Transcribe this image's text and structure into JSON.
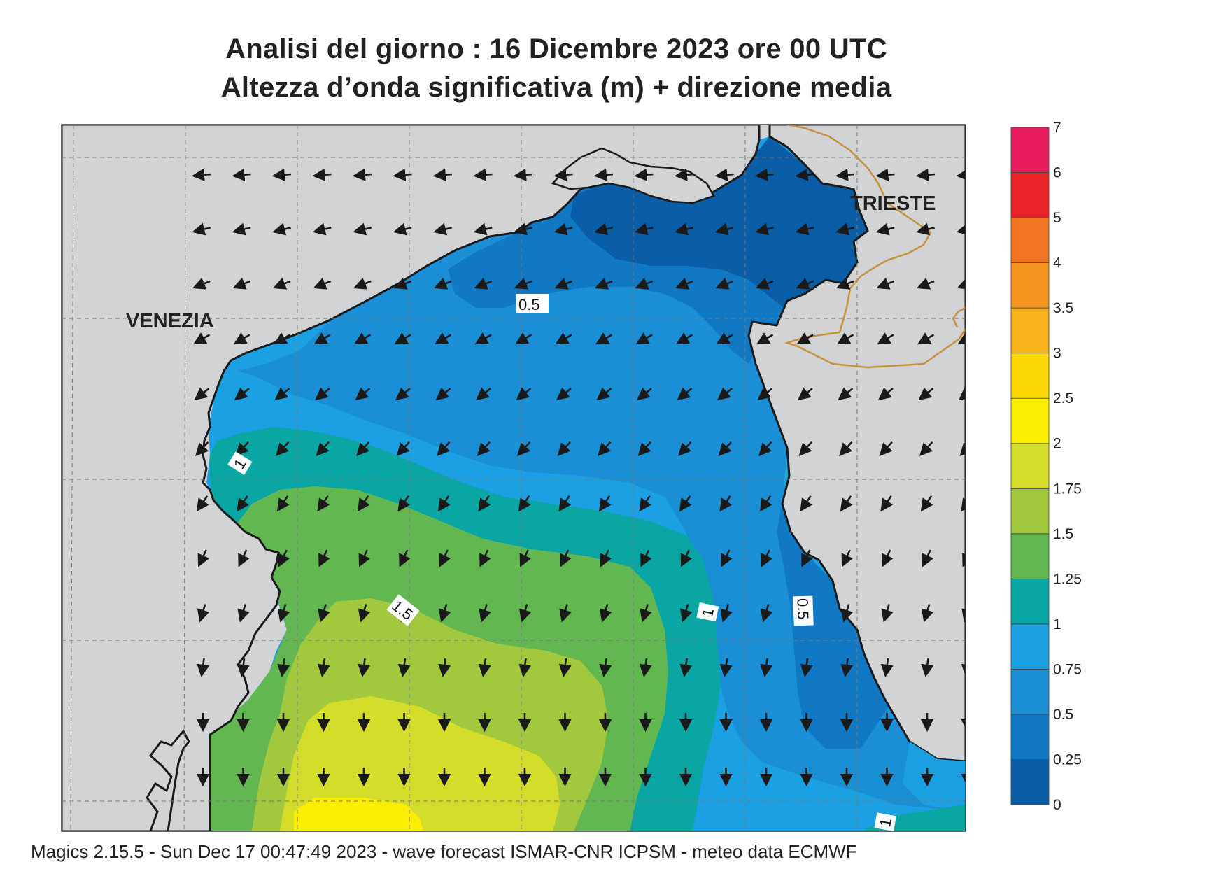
{
  "header": {
    "title_line1": "Analisi del giorno :  16 Dicembre  2023   ore 00 UTC",
    "title_line2": "Altezza d’onda significativa (m) + direzione media"
  },
  "footer": {
    "text": "Magics 2.15.5 - Sun Dec 17 00:47:49 2023 - wave forecast  ISMAR-CNR  ICPSM - meteo data   ECMWF"
  },
  "map": {
    "cities": [
      {
        "name": "VENEZIA"
      },
      {
        "name": "TRIESTE"
      }
    ],
    "contour_labels": [
      "0.5",
      "1",
      "1.5",
      "1",
      "0.5",
      "1"
    ],
    "land_color": "#d2d3d5",
    "coast_color": "#1a1a1a",
    "border_color": "#c8923a"
  },
  "legend": {
    "unit": "m",
    "levels": [
      "0",
      "0.25",
      "0.5",
      "0.75",
      "1",
      "1.25",
      "1.5",
      "1.75",
      "2",
      "2.5",
      "3",
      "3.5",
      "4",
      "5",
      "6",
      "7"
    ],
    "colors": [
      "#0a5ea8",
      "#1178c4",
      "#1a8fd6",
      "#1ba0e4",
      "#0aa6a4",
      "#63b750",
      "#a2c93d",
      "#d4de2a",
      "#fcee00",
      "#fad700",
      "#f8b21c",
      "#f5941f",
      "#f27621",
      "#e92228",
      "#e81b5d"
    ]
  }
}
